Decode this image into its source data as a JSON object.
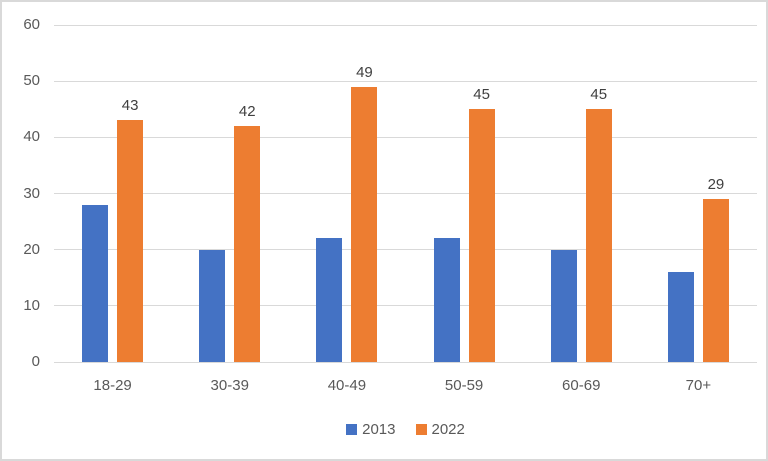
{
  "chart_data": {
    "type": "bar",
    "title": "",
    "categories": [
      "18-29",
      "30-39",
      "40-49",
      "50-59",
      "60-69",
      "70+"
    ],
    "series": [
      {
        "name": "2013",
        "color": "#4472C4",
        "values": [
          28,
          20,
          22,
          22,
          20,
          16
        ],
        "data_labels": false
      },
      {
        "name": "2022",
        "color": "#ED7D31",
        "values": [
          43,
          42,
          49,
          45,
          45,
          29
        ],
        "data_labels": true
      }
    ],
    "ylim": [
      0,
      60
    ],
    "yticks": [
      0,
      10,
      20,
      30,
      40,
      50,
      60
    ],
    "xlabel": "",
    "ylabel": "",
    "grid": true,
    "legend_position": "bottom"
  },
  "colors": {
    "series_2013": "#4472C4",
    "series_2022": "#ED7D31",
    "gridline": "#d9d9d9",
    "axis_text": "#595959",
    "data_label_text": "#404040",
    "background": "#ffffff",
    "border": "#d9d9d9"
  }
}
